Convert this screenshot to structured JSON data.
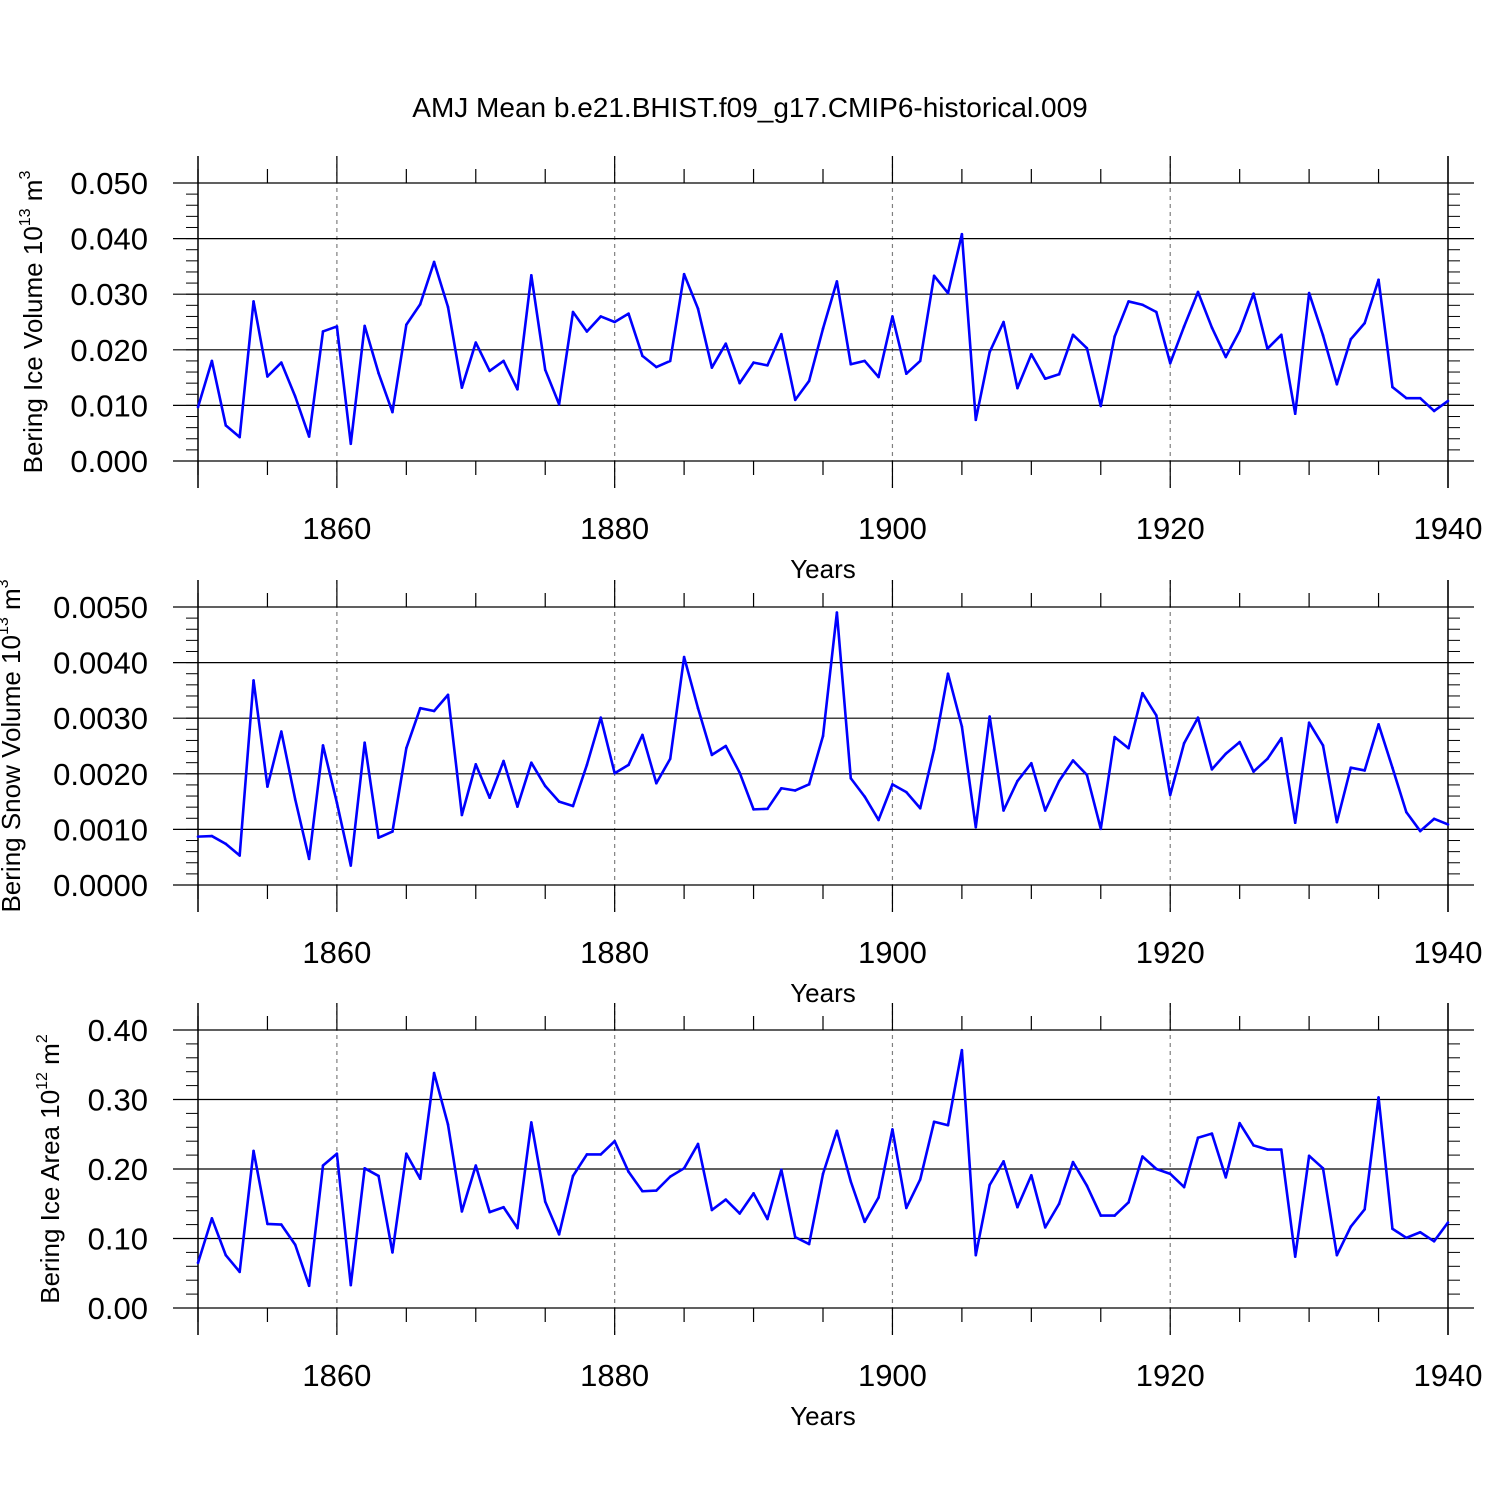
{
  "title": "AMJ Mean b.e21.BHIST.f09_g17.CMIP6-historical.009",
  "colors": {
    "line": "#0000ff",
    "axis": "#000000",
    "grid": "#808080"
  },
  "chart_data": [
    {
      "type": "line",
      "ylabel_main": "Bering Ice Volume 10",
      "ylabel_exp": "13",
      "ylabel_unit": " m",
      "ylabel_unit_exp": "3",
      "xlabel": "Years",
      "ylim": [
        0,
        0.05
      ],
      "xlim": [
        1850,
        1940
      ],
      "yticks": [
        0,
        0.01,
        0.02,
        0.03,
        0.04,
        0.05
      ],
      "yticklabels": [
        "0.000",
        "0.010",
        "0.020",
        "0.030",
        "0.040",
        "0.050"
      ],
      "xticks": [
        1860,
        1880,
        1900,
        1920,
        1940
      ],
      "xticklabels": [
        "1860",
        "1880",
        "1900",
        "1920",
        "1940"
      ],
      "grid_x": true,
      "x": [
        1850,
        1851,
        1852,
        1853,
        1854,
        1855,
        1856,
        1857,
        1858,
        1859,
        1860,
        1861,
        1862,
        1863,
        1864,
        1865,
        1866,
        1867,
        1868,
        1869,
        1870,
        1871,
        1872,
        1873,
        1874,
        1875,
        1876,
        1877,
        1878,
        1879,
        1880,
        1881,
        1882,
        1883,
        1884,
        1885,
        1886,
        1887,
        1888,
        1889,
        1890,
        1891,
        1892,
        1893,
        1894,
        1895,
        1896,
        1897,
        1898,
        1899,
        1900,
        1901,
        1902,
        1903,
        1904,
        1905,
        1906,
        1907,
        1908,
        1909,
        1910,
        1911,
        1912,
        1913,
        1914,
        1915,
        1916,
        1917,
        1918,
        1919,
        1920,
        1921,
        1922,
        1923,
        1924,
        1925,
        1926,
        1927,
        1928,
        1929,
        1930,
        1931,
        1932,
        1933,
        1934,
        1935,
        1936,
        1937,
        1938,
        1939,
        1940
      ],
      "values": [
        0.0097,
        0.018,
        0.0064,
        0.0043,
        0.0287,
        0.0152,
        0.0177,
        0.0116,
        0.0044,
        0.0233,
        0.0242,
        0.0031,
        0.0243,
        0.0158,
        0.0088,
        0.0245,
        0.0282,
        0.0358,
        0.0277,
        0.0132,
        0.0213,
        0.0162,
        0.018,
        0.0129,
        0.0334,
        0.0164,
        0.0102,
        0.0268,
        0.0233,
        0.026,
        0.025,
        0.0265,
        0.0189,
        0.0169,
        0.018,
        0.0336,
        0.0274,
        0.0168,
        0.0211,
        0.014,
        0.0177,
        0.0172,
        0.0228,
        0.011,
        0.0144,
        0.0238,
        0.0323,
        0.0174,
        0.018,
        0.0151,
        0.026,
        0.0157,
        0.018,
        0.0333,
        0.0302,
        0.0408,
        0.0074,
        0.0196,
        0.025,
        0.0131,
        0.0192,
        0.0148,
        0.0156,
        0.0227,
        0.0203,
        0.0099,
        0.0224,
        0.0287,
        0.0281,
        0.0268,
        0.0176,
        0.0242,
        0.0304,
        0.024,
        0.0187,
        0.0234,
        0.0301,
        0.0202,
        0.0227,
        0.0085,
        0.0302,
        0.0226,
        0.0138,
        0.0219,
        0.0248,
        0.0326,
        0.0133,
        0.0113,
        0.0113,
        0.009,
        0.0108
      ]
    },
    {
      "type": "line",
      "ylabel_main": "Bering Snow Volume 10",
      "ylabel_exp": "13",
      "ylabel_unit": " m",
      "ylabel_unit_exp": "3",
      "xlabel": "Years",
      "ylim": [
        0,
        0.005
      ],
      "xlim": [
        1850,
        1940
      ],
      "yticks": [
        0,
        0.001,
        0.002,
        0.003,
        0.004,
        0.005
      ],
      "yticklabels": [
        "0.0000",
        "0.0010",
        "0.0020",
        "0.0030",
        "0.0040",
        "0.0050"
      ],
      "xticks": [
        1860,
        1880,
        1900,
        1920,
        1940
      ],
      "xticklabels": [
        "1860",
        "1880",
        "1900",
        "1920",
        "1940"
      ],
      "grid_x": true,
      "x": [
        1850,
        1851,
        1852,
        1853,
        1854,
        1855,
        1856,
        1857,
        1858,
        1859,
        1860,
        1861,
        1862,
        1863,
        1864,
        1865,
        1866,
        1867,
        1868,
        1869,
        1870,
        1871,
        1872,
        1873,
        1874,
        1875,
        1876,
        1877,
        1878,
        1879,
        1880,
        1881,
        1882,
        1883,
        1884,
        1885,
        1886,
        1887,
        1888,
        1889,
        1890,
        1891,
        1892,
        1893,
        1894,
        1895,
        1896,
        1897,
        1898,
        1899,
        1900,
        1901,
        1902,
        1903,
        1904,
        1905,
        1906,
        1907,
        1908,
        1909,
        1910,
        1911,
        1912,
        1913,
        1914,
        1915,
        1916,
        1917,
        1918,
        1919,
        1920,
        1921,
        1922,
        1923,
        1924,
        1925,
        1926,
        1927,
        1928,
        1929,
        1930,
        1931,
        1932,
        1933,
        1934,
        1935,
        1936,
        1937,
        1938,
        1939,
        1940
      ],
      "values": [
        0.00087,
        0.00088,
        0.00074,
        0.00053,
        0.00368,
        0.00177,
        0.00276,
        0.00154,
        0.00047,
        0.00251,
        0.00148,
        0.00035,
        0.00256,
        0.00085,
        0.00096,
        0.00246,
        0.00318,
        0.00313,
        0.00342,
        0.00126,
        0.00217,
        0.00157,
        0.00223,
        0.00141,
        0.0022,
        0.00178,
        0.0015,
        0.00142,
        0.00216,
        0.00301,
        0.00201,
        0.00216,
        0.0027,
        0.00183,
        0.00227,
        0.0041,
        0.00318,
        0.00234,
        0.0025,
        0.00202,
        0.00136,
        0.00137,
        0.00174,
        0.0017,
        0.00181,
        0.00268,
        0.0049,
        0.00192,
        0.00159,
        0.00117,
        0.00181,
        0.00167,
        0.00138,
        0.00244,
        0.0038,
        0.00285,
        0.00104,
        0.00303,
        0.00134,
        0.00187,
        0.00219,
        0.00134,
        0.00187,
        0.00224,
        0.00198,
        0.00101,
        0.00266,
        0.00246,
        0.00345,
        0.00305,
        0.00162,
        0.00255,
        0.00301,
        0.00208,
        0.00236,
        0.00257,
        0.00204,
        0.00227,
        0.00264,
        0.00112,
        0.00292,
        0.00251,
        0.00113,
        0.00211,
        0.00206,
        0.00289,
        0.00211,
        0.00131,
        0.00097,
        0.00119,
        0.00109
      ]
    },
    {
      "type": "line",
      "ylabel_main": "Bering Ice Area 10",
      "ylabel_exp": "12",
      "ylabel_unit": " m",
      "ylabel_unit_exp": "2",
      "xlabel": "Years",
      "ylim": [
        0,
        0.4
      ],
      "xlim": [
        1850,
        1940
      ],
      "yticks": [
        0,
        0.1,
        0.2,
        0.3,
        0.4
      ],
      "yticklabels": [
        "0.00",
        "0.10",
        "0.20",
        "0.30",
        "0.40"
      ],
      "xticks": [
        1860,
        1880,
        1900,
        1920,
        1940
      ],
      "xticklabels": [
        "1860",
        "1880",
        "1900",
        "1920",
        "1940"
      ],
      "grid_x": true,
      "x": [
        1850,
        1851,
        1852,
        1853,
        1854,
        1855,
        1856,
        1857,
        1858,
        1859,
        1860,
        1861,
        1862,
        1863,
        1864,
        1865,
        1866,
        1867,
        1868,
        1869,
        1870,
        1871,
        1872,
        1873,
        1874,
        1875,
        1876,
        1877,
        1878,
        1879,
        1880,
        1881,
        1882,
        1883,
        1884,
        1885,
        1886,
        1887,
        1888,
        1889,
        1890,
        1891,
        1892,
        1893,
        1894,
        1895,
        1896,
        1897,
        1898,
        1899,
        1900,
        1901,
        1902,
        1903,
        1904,
        1905,
        1906,
        1907,
        1908,
        1909,
        1910,
        1911,
        1912,
        1913,
        1914,
        1915,
        1916,
        1917,
        1918,
        1919,
        1920,
        1921,
        1922,
        1923,
        1924,
        1925,
        1926,
        1927,
        1928,
        1929,
        1930,
        1931,
        1932,
        1933,
        1934,
        1935,
        1936,
        1937,
        1938,
        1939,
        1940
      ],
      "values": [
        0.065,
        0.129,
        0.076,
        0.052,
        0.226,
        0.121,
        0.12,
        0.091,
        0.032,
        0.205,
        0.222,
        0.033,
        0.201,
        0.19,
        0.08,
        0.222,
        0.186,
        0.338,
        0.264,
        0.139,
        0.205,
        0.138,
        0.145,
        0.115,
        0.267,
        0.153,
        0.106,
        0.19,
        0.221,
        0.221,
        0.24,
        0.196,
        0.168,
        0.169,
        0.189,
        0.201,
        0.236,
        0.141,
        0.156,
        0.136,
        0.165,
        0.128,
        0.199,
        0.102,
        0.092,
        0.193,
        0.255,
        0.182,
        0.124,
        0.159,
        0.257,
        0.144,
        0.185,
        0.268,
        0.263,
        0.371,
        0.076,
        0.177,
        0.211,
        0.145,
        0.191,
        0.116,
        0.15,
        0.21,
        0.176,
        0.133,
        0.133,
        0.152,
        0.218,
        0.2,
        0.193,
        0.174,
        0.245,
        0.251,
        0.188,
        0.266,
        0.234,
        0.228,
        0.228,
        0.074,
        0.219,
        0.201,
        0.076,
        0.117,
        0.142,
        0.303,
        0.114,
        0.101,
        0.109,
        0.096,
        0.123
      ]
    }
  ]
}
